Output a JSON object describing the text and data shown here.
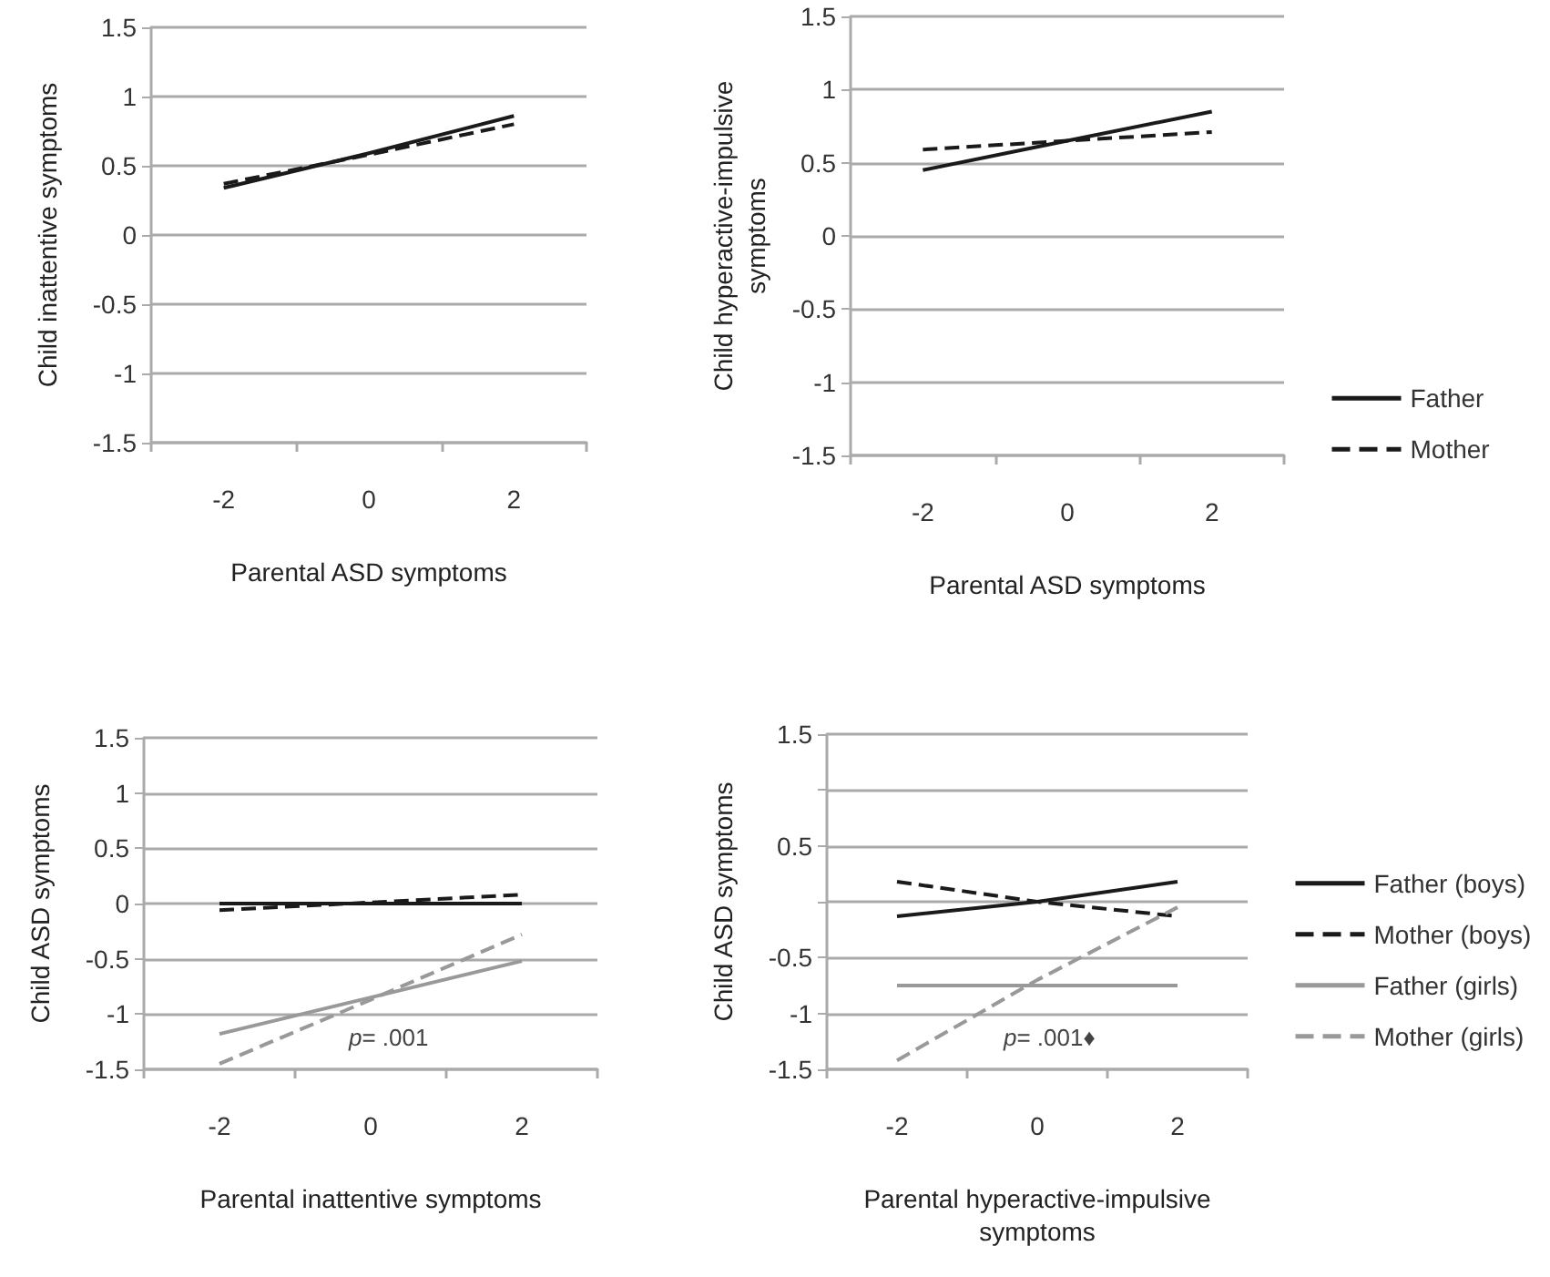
{
  "chart_data": [
    {
      "type": "line",
      "xlabel": "Parental ASD symptoms",
      "ylabel": "Child inattentive symptoms",
      "categories": [
        "-2",
        "0",
        "2"
      ],
      "ylim": [
        -1.5,
        1.5
      ],
      "yticks": [
        -1.5,
        -1,
        -0.5,
        0,
        0.5,
        1,
        1.5
      ],
      "grid": "y",
      "legend": false,
      "marker": "none",
      "series": [
        {
          "color": "#1a1a1a",
          "line_style": "solid",
          "values": [
            0.34,
            0.59,
            0.86
          ]
        },
        {
          "color": "#1a1a1a",
          "line_style": "dashed",
          "values": [
            0.37,
            0.58,
            0.8
          ]
        }
      ]
    },
    {
      "type": "line",
      "xlabel": "Parental ASD symptoms",
      "ylabel": "Child hyperactive-impulsive symptoms",
      "categories": [
        "-2",
        "0",
        "2"
      ],
      "ylim": [
        -1.5,
        1.5
      ],
      "yticks": [
        -1.5,
        -1,
        -0.5,
        0,
        0.5,
        1,
        1.5
      ],
      "grid": "y",
      "legend": "right",
      "marker": "none",
      "series": [
        {
          "name": "Father",
          "color": "#1a1a1a",
          "line_style": "solid",
          "values": [
            0.45,
            0.65,
            0.85
          ]
        },
        {
          "name": "Mother",
          "color": "#1a1a1a",
          "line_style": "dashed",
          "values": [
            0.59,
            0.65,
            0.71
          ]
        }
      ]
    },
    {
      "type": "line",
      "xlabel": "Parental inattentive symptoms",
      "ylabel": "Child ASD symptoms",
      "categories": [
        "-2",
        "0",
        "2"
      ],
      "ylim": [
        -1.5,
        1.5
      ],
      "yticks": [
        -1.5,
        -1,
        -0.5,
        0,
        0.5,
        1,
        1.5
      ],
      "grid": "y",
      "legend": false,
      "marker": "none",
      "annotations": [
        "p= .001"
      ],
      "series": [
        {
          "color": "#1a1a1a",
          "line_style": "solid",
          "values": [
            0,
            0,
            0
          ]
        },
        {
          "color": "#1a1a1a",
          "line_style": "dashed",
          "values": [
            -0.06,
            0.01,
            0.08
          ]
        },
        {
          "color": "#999999",
          "line_style": "solid",
          "values": [
            -1.18,
            -0.85,
            -0.52
          ]
        },
        {
          "color": "#999999",
          "line_style": "dashed",
          "values": [
            -1.45,
            -0.87,
            -0.28
          ]
        }
      ]
    },
    {
      "type": "line",
      "xlabel": "Parental hyperactive-impulsive symptoms",
      "ylabel": "Child ASD symptoms",
      "categories": [
        "-2",
        "0",
        "2"
      ],
      "ylim": [
        -1.5,
        1.5
      ],
      "yticks": [
        -1.5,
        -1,
        -0.5,
        {
          "value": 0,
          "label": null
        },
        0.5,
        {
          "value": 1,
          "label": null
        },
        1.5
      ],
      "grid": "y",
      "legend": "right",
      "marker": "none",
      "annotations": [
        "p= .001♦"
      ],
      "series": [
        {
          "name": "Father (boys)",
          "color": "#1a1a1a",
          "line_style": "solid",
          "values": [
            -0.13,
            0,
            0.18
          ]
        },
        {
          "name": "Mother (boys)",
          "color": "#1a1a1a",
          "line_style": "dashed",
          "values": [
            0.18,
            0,
            -0.13
          ]
        },
        {
          "name": "Father (girls)",
          "color": "#999999",
          "line_style": "solid",
          "values": [
            -0.75,
            -0.75,
            -0.75
          ]
        },
        {
          "name": "Mother (girls)",
          "color": "#999999",
          "line_style": "dashed",
          "values": [
            -1.42,
            -0.7,
            -0.05
          ]
        }
      ]
    }
  ]
}
